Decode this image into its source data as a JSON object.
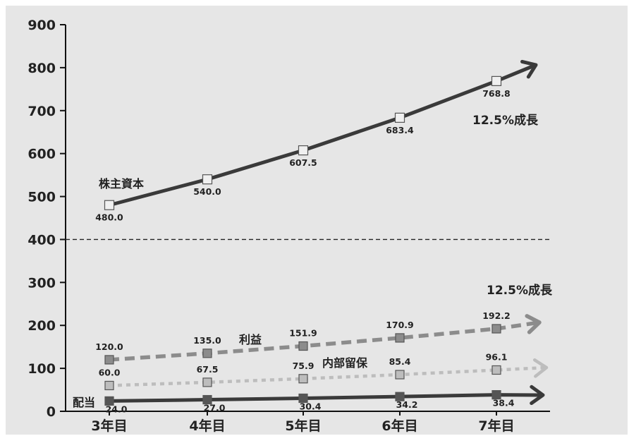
{
  "chart_data": {
    "type": "line",
    "categories": [
      "3年目",
      "4年目",
      "5年目",
      "6年目",
      "7年目"
    ],
    "ylim": [
      0,
      900
    ],
    "yticks": [
      0,
      100,
      200,
      300,
      400,
      500,
      600,
      700,
      800,
      900
    ],
    "series": [
      {
        "name": "株主資本",
        "values": [
          480.0,
          540.0,
          607.5,
          683.4,
          768.8
        ],
        "labels": [
          "480.0",
          "540.0",
          "607.5",
          "683.4",
          "768.8"
        ],
        "style": "solid",
        "color": "#3a3a3a",
        "marker": "#f0f0f0"
      },
      {
        "name": "利益",
        "values": [
          120.0,
          135.0,
          151.9,
          170.9,
          192.2
        ],
        "labels": [
          "120.0",
          "135.0",
          "151.9",
          "170.9",
          "192.2"
        ],
        "style": "dashed",
        "color": "#8c8c8c",
        "marker": "#8c8c8c"
      },
      {
        "name": "内部留保",
        "values": [
          60.0,
          67.5,
          75.9,
          85.4,
          96.1
        ],
        "labels": [
          "60.0",
          "67.5",
          "75.9",
          "85.4",
          "96.1"
        ],
        "style": "dotted",
        "color": "#bdbdbd",
        "marker": "#bdbdbd"
      },
      {
        "name": "配当",
        "values": [
          24.0,
          27.0,
          30.4,
          34.2,
          38.4
        ],
        "labels": [
          "24.0",
          "27.0",
          "30.4",
          "34.2",
          "38.4"
        ],
        "style": "solid",
        "color": "#3a3a3a",
        "marker": "#555555"
      }
    ],
    "annotations": [
      "12.5%成長",
      "12.5%成長"
    ],
    "reference_line": 400,
    "background": "#e6e6e6"
  }
}
